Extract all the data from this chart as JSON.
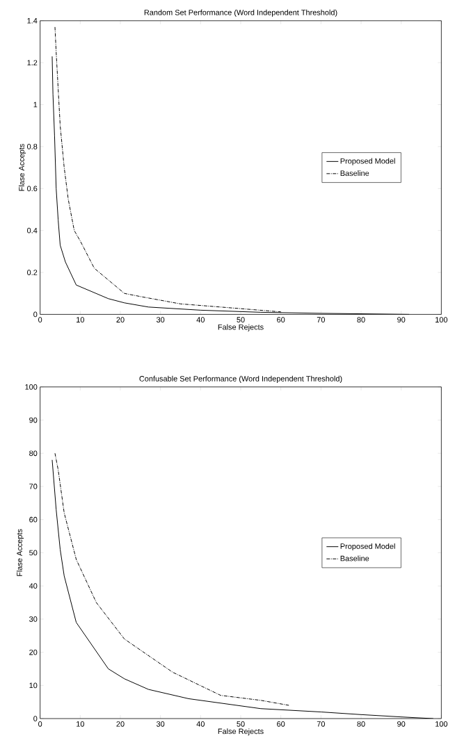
{
  "chart_data": [
    {
      "type": "line",
      "title": "Random Set Performance (Word Independent Threshold)",
      "xlabel": "False Rejects",
      "ylabel": "Flase Accepts",
      "xlim": [
        0,
        100
      ],
      "ylim": [
        0,
        1.4
      ],
      "xticks": [
        0,
        10,
        20,
        30,
        40,
        50,
        60,
        70,
        80,
        90,
        100
      ],
      "yticks": [
        0,
        0.2,
        0.4,
        0.6,
        0.8,
        1,
        1.2,
        1.4
      ],
      "legend": "right",
      "grid": false,
      "series": [
        {
          "name": "Proposed Model",
          "color": "#000000",
          "line_style": "solid",
          "x": [
            3,
            3.2,
            3.6,
            4,
            4.5,
            5,
            6.3,
            9,
            17,
            21,
            27,
            40,
            55,
            70,
            92
          ],
          "values": [
            1.23,
            1.05,
            0.85,
            0.6,
            0.45,
            0.33,
            0.25,
            0.14,
            0.075,
            0.055,
            0.035,
            0.02,
            0.01,
            0.005,
            0
          ]
        },
        {
          "name": "Baseline",
          "color": "#000000",
          "line_style": "dashdot",
          "x": [
            3.7,
            4,
            5,
            6,
            7,
            8.5,
            10,
            13.5,
            21,
            25,
            35,
            45,
            60
          ],
          "values": [
            1.37,
            1.25,
            0.9,
            0.7,
            0.55,
            0.4,
            0.35,
            0.22,
            0.1,
            0.085,
            0.05,
            0.035,
            0.012
          ]
        }
      ]
    },
    {
      "type": "line",
      "title": "Confusable Set Performance (Word Independent Threshold)",
      "xlabel": "False Rejects",
      "ylabel": "Flase Accepts",
      "xlim": [
        0,
        100
      ],
      "ylim": [
        0,
        100
      ],
      "xticks": [
        0,
        10,
        20,
        30,
        40,
        50,
        60,
        70,
        80,
        90,
        100
      ],
      "yticks": [
        0,
        10,
        20,
        30,
        40,
        50,
        60,
        70,
        80,
        90,
        100
      ],
      "legend": "right",
      "grid": false,
      "series": [
        {
          "name": "Proposed Model",
          "color": "#000000",
          "line_style": "solid",
          "x": [
            3,
            4,
            5,
            6,
            9,
            17,
            21,
            27,
            37,
            55,
            70,
            80,
            90,
            98
          ],
          "values": [
            78,
            63,
            51,
            43,
            29,
            15,
            12,
            8.8,
            6,
            3,
            2,
            1.2,
            0.5,
            0
          ]
        },
        {
          "name": "Baseline",
          "color": "#000000",
          "line_style": "dashdot",
          "x": [
            3.7,
            4.5,
            6,
            9,
            14,
            21,
            27,
            33,
            45,
            55,
            62
          ],
          "values": [
            80,
            75,
            62,
            48,
            35,
            24,
            19,
            14,
            7,
            5.5,
            4
          ]
        }
      ]
    }
  ]
}
